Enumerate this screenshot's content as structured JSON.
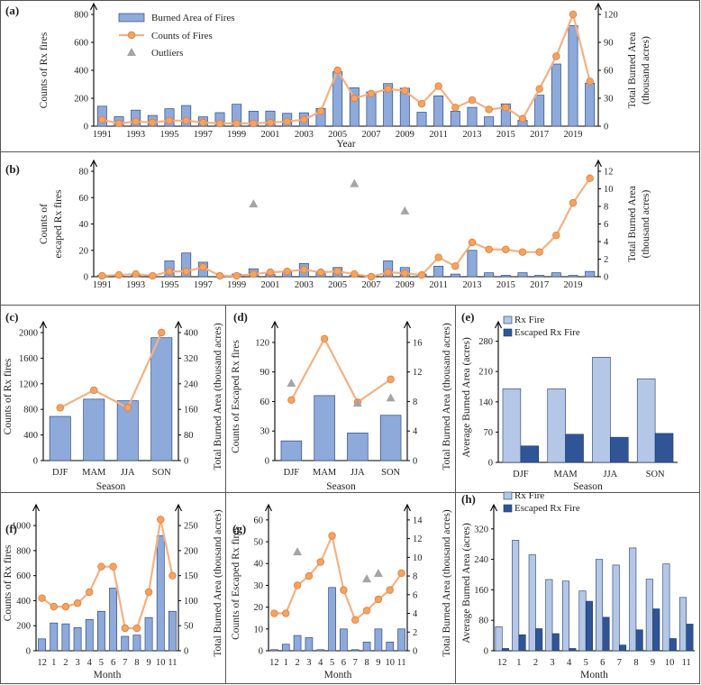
{
  "colors": {
    "bar": "#8eaadb",
    "bar_edge": "#2f4a80",
    "line": "#f4b183",
    "marker": "#f4a460",
    "marker_edge": "#e07b39",
    "outlier": "#a5a5a5",
    "rx_light": "#b4c7e7",
    "rx_dark": "#2f5597"
  },
  "chart_data": [
    {
      "id": "a",
      "panel_label": "(a)",
      "type": "bar+line",
      "x_kind": "year",
      "categories": [
        "1991",
        "1992",
        "1993",
        "1994",
        "1995",
        "1996",
        "1997",
        "1998",
        "1999",
        "2000",
        "2001",
        "2002",
        "2003",
        "2004",
        "2005",
        "2006",
        "2007",
        "2008",
        "2009",
        "2010",
        "2011",
        "2012",
        "2013",
        "2014",
        "2015",
        "2016",
        "2017",
        "2018",
        "2019",
        "2020"
      ],
      "tick_labels": [
        "1991",
        "",
        "1993",
        "",
        "1995",
        "",
        "1997",
        "",
        "1999",
        "",
        "2001",
        "",
        "2003",
        "",
        "2005",
        "",
        "2007",
        "",
        "2009",
        "",
        "2011",
        "",
        "2013",
        "",
        "2015",
        "",
        "2017",
        "",
        "2019",
        ""
      ],
      "bar_values": [
        143,
        68,
        115,
        77,
        125,
        148,
        67,
        97,
        157,
        107,
        108,
        92,
        96,
        127,
        390,
        275,
        245,
        305,
        272,
        100,
        217,
        107,
        135,
        67,
        160,
        42,
        222,
        445,
        720,
        308
      ],
      "line_values": [
        7,
        3,
        5,
        4,
        6,
        6,
        4,
        3,
        3,
        3,
        4,
        5,
        7,
        16,
        60,
        30,
        35,
        40,
        38,
        24,
        43,
        20,
        28,
        18,
        20,
        8,
        40,
        75,
        120,
        48
      ],
      "outlier_points": [],
      "xlabel": "Year",
      "ylabel_left": [
        "Counts of Rx fires"
      ],
      "ylabel_right": [
        "Total Burned Area",
        "(thousand acres)"
      ],
      "ylim_left": [
        0,
        800
      ],
      "yticks_left": [
        0,
        200,
        400,
        600,
        800
      ],
      "ylim_right": [
        0,
        120
      ],
      "yticks_right": [
        0,
        30,
        60,
        90,
        120
      ],
      "legend": [
        "Burned Area of Fires",
        "Counts of Fires",
        "Outliers"
      ]
    },
    {
      "id": "b",
      "panel_label": "(b)",
      "type": "bar+line",
      "x_kind": "year",
      "categories": [
        "1991",
        "1992",
        "1993",
        "1994",
        "1995",
        "1996",
        "1997",
        "1998",
        "1999",
        "2000",
        "2001",
        "2002",
        "2003",
        "2004",
        "2005",
        "2006",
        "2007",
        "2008",
        "2009",
        "2010",
        "2011",
        "2012",
        "2013",
        "2014",
        "2015",
        "2016",
        "2017",
        "2018",
        "2019",
        "2020"
      ],
      "tick_labels": [
        "1991",
        "",
        "1993",
        "",
        "1995",
        "",
        "1997",
        "",
        "1999",
        "",
        "2001",
        "",
        "2003",
        "",
        "2005",
        "",
        "2007",
        "",
        "2009",
        "",
        "2011",
        "",
        "2013",
        "",
        "2015",
        "",
        "2017",
        "",
        "2019",
        ""
      ],
      "bar_values": [
        1,
        1,
        1,
        0,
        12,
        18,
        11,
        0,
        2,
        6,
        2,
        4,
        10,
        4,
        7,
        1,
        1,
        12,
        7,
        2,
        8,
        2,
        20,
        3,
        1,
        3,
        1,
        3,
        1,
        4
      ],
      "line_values": [
        0.1,
        0.2,
        0.3,
        0.1,
        0.6,
        0.6,
        1.1,
        0.1,
        0.1,
        0.3,
        0.5,
        0.6,
        0.8,
        0.5,
        0.6,
        0.3,
        0.0,
        0.5,
        0.4,
        0.2,
        2.2,
        1.2,
        3.9,
        3.1,
        3.1,
        2.8,
        2.8,
        4.7,
        8.4,
        11.2
      ],
      "outlier_points": [
        [
          2000,
          8.3
        ],
        [
          2006,
          10.6
        ],
        [
          2009,
          7.5
        ]
      ],
      "xlabel": "",
      "ylabel_left": [
        "Counts of",
        "escaped Rx fires"
      ],
      "ylabel_right": [
        "Total Burned Area",
        "(thousand acres)"
      ],
      "ylim_left": [
        0,
        80
      ],
      "yticks_left": [
        0,
        20,
        40,
        60,
        80
      ],
      "ylim_right": [
        0,
        12
      ],
      "yticks_right": [
        0,
        2,
        4,
        6,
        8,
        10,
        12
      ],
      "legend": []
    },
    {
      "id": "c",
      "panel_label": "(c)",
      "type": "bar+line",
      "categories": [
        "DJF",
        "MAM",
        "JJA",
        "SON"
      ],
      "tick_labels": [
        "DJF",
        "MAM",
        "JJA",
        "SON"
      ],
      "bar_values": [
        690,
        960,
        935,
        1920
      ],
      "line_values": [
        165,
        220,
        165,
        400
      ],
      "outlier_points": [],
      "xlabel": "Season",
      "ylabel_left": [
        "Counts of  Rx fires"
      ],
      "ylabel_right": [
        "Total Burned Area (thousand acres)"
      ],
      "ylim_left": [
        0,
        2000
      ],
      "yticks_left": [
        0,
        400,
        800,
        1200,
        1600,
        2000
      ],
      "ylim_right": [
        0,
        400
      ],
      "yticks_right": [
        0,
        80,
        160,
        240,
        320,
        400
      ],
      "legend": []
    },
    {
      "id": "d",
      "panel_label": "(d)",
      "type": "bar+line",
      "categories": [
        "DJF",
        "MAM",
        "JJA",
        "SON"
      ],
      "tick_labels": [
        "DJF",
        "MAM",
        "JJA",
        "SON"
      ],
      "bar_values": [
        20,
        66,
        28,
        46
      ],
      "line_values": [
        8.2,
        16.5,
        7.9,
        11
      ],
      "outlier_points": [
        [
          1,
          10.5
        ],
        [
          3,
          7.8
        ],
        [
          4,
          8.5
        ]
      ],
      "xlabel": "Season",
      "ylabel_left": [
        "Counts of  Escaped Rx fires"
      ],
      "ylabel_right": [
        "Total Burned Area (thousand acres)"
      ],
      "ylim_left": [
        0,
        130
      ],
      "yticks_left": [
        0,
        30,
        60,
        90,
        120
      ],
      "ylim_right": [
        0,
        17.33
      ],
      "yticks_right": [
        0,
        4,
        8,
        12,
        16
      ],
      "legend": []
    },
    {
      "id": "e",
      "panel_label": "(e)",
      "type": "grouped-bar",
      "categories": [
        "DJF",
        "MAM",
        "JJA",
        "SON"
      ],
      "tick_labels": [
        "DJF",
        "MAM",
        "JJA",
        "SON"
      ],
      "series": [
        {
          "name": "Rx Fire",
          "values": [
            170,
            170,
            243,
            193
          ]
        },
        {
          "name": "Escaped Rx Fire",
          "values": [
            38,
            65,
            58,
            67
          ]
        }
      ],
      "xlabel": "Season",
      "ylabel_left": [
        "Average Burned Area (acres)"
      ],
      "ylim_left": [
        0,
        300
      ],
      "yticks_left": [
        0,
        70,
        140,
        210,
        280
      ],
      "legend": [
        "Rx Fire",
        "Escaped Rx Fire"
      ]
    },
    {
      "id": "f",
      "panel_label": "(f)",
      "type": "bar+line",
      "categories": [
        "12",
        "1",
        "2",
        "3",
        "4",
        "5",
        "6",
        "7",
        "8",
        "9",
        "10",
        "11"
      ],
      "tick_labels": [
        "12",
        "1",
        "2",
        "3",
        "4",
        "5",
        "6",
        "7",
        "8",
        "9",
        "10",
        "11"
      ],
      "bar_values": [
        95,
        222,
        215,
        185,
        250,
        315,
        500,
        115,
        125,
        265,
        920,
        315
      ],
      "line_values": [
        105,
        88,
        88,
        95,
        117,
        168,
        168,
        45,
        45,
        117,
        262,
        150
      ],
      "outlier_points": [],
      "xlabel": "Month",
      "ylabel_left": [
        "Counts of  Rx fires"
      ],
      "ylabel_right": [
        "Total Burned Area (thousand acres)"
      ],
      "ylim_left": [
        0,
        1080
      ],
      "yticks_left": [
        0,
        200,
        400,
        600,
        800,
        1000
      ],
      "ylim_right": [
        0,
        270
      ],
      "yticks_right": [
        0,
        50,
        100,
        150,
        200,
        250
      ],
      "legend": []
    },
    {
      "id": "g",
      "panel_label": "(g)",
      "type": "bar+line",
      "categories": [
        "12",
        "1",
        "2",
        "3",
        "4",
        "5",
        "6",
        "7",
        "8",
        "9",
        "10",
        "11"
      ],
      "tick_labels": [
        "12",
        "1",
        "2",
        "3",
        "4",
        "5",
        "6",
        "7",
        "8",
        "9",
        "10",
        "11"
      ],
      "bar_values": [
        0.5,
        3,
        7,
        6,
        0.5,
        29,
        10,
        0.5,
        4,
        10,
        4,
        10
      ],
      "line_values": [
        4,
        4,
        7,
        8,
        9.5,
        12.3,
        6.5,
        3.3,
        4.3,
        5.5,
        6.5,
        8.3
      ],
      "outlier_points": [
        [
          2,
          10.6
        ],
        [
          8,
          7.7
        ],
        [
          9,
          8.3
        ]
      ],
      "xlabel": "Month",
      "ylabel_left": [
        "Counts of  Escaped Rx fires"
      ],
      "ylabel_right": [
        "Total Burned Area (thousand acres)"
      ],
      "ylim_left": [
        0,
        62
      ],
      "yticks_left": [
        0,
        10,
        20,
        30,
        40,
        50,
        60
      ],
      "ylim_right": [
        0,
        14.47
      ],
      "yticks_right": [
        0,
        2,
        4,
        6,
        8,
        10,
        12,
        14
      ],
      "legend": []
    },
    {
      "id": "h",
      "panel_label": "(h)",
      "type": "grouped-bar",
      "categories": [
        "12",
        "1",
        "2",
        "3",
        "4",
        "5",
        "6",
        "7",
        "8",
        "9",
        "10",
        "11"
      ],
      "tick_labels": [
        "12",
        "1",
        "2",
        "3",
        "4",
        "5",
        "6",
        "7",
        "8",
        "9",
        "10",
        "11"
      ],
      "series": [
        {
          "name": "Rx Fire",
          "values": [
            63,
            290,
            252,
            187,
            183,
            157,
            240,
            225,
            270,
            188,
            228,
            140
          ]
        },
        {
          "name": "Escaped Rx Fire",
          "values": [
            6,
            42,
            58,
            45,
            6,
            130,
            88,
            15,
            55,
            110,
            32,
            70
          ]
        }
      ],
      "xlabel": "Month",
      "ylabel_left": [
        "Average Burned Area (acres)"
      ],
      "ylim_left": [
        0,
        355
      ],
      "yticks_left": [
        0,
        80,
        160,
        240,
        320
      ],
      "legend": [
        "Rx Fire",
        "Escaped Rx Fire"
      ]
    }
  ]
}
